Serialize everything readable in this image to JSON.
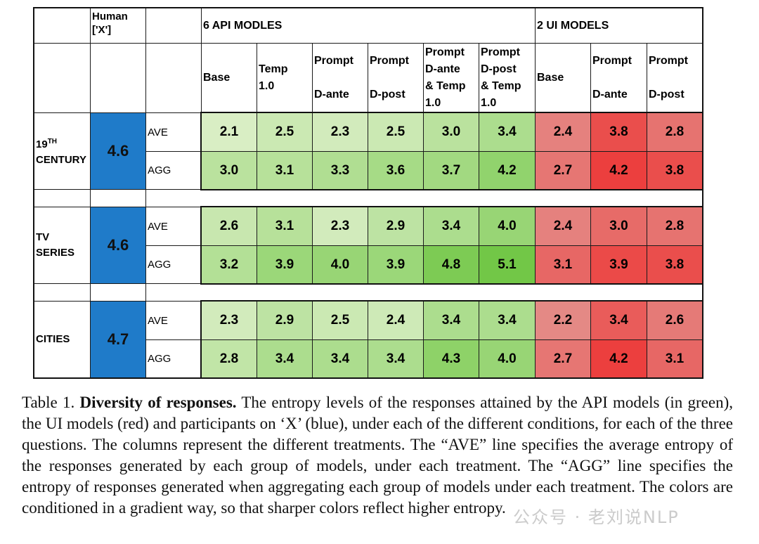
{
  "table": {
    "header": {
      "human": "Human\n['X']",
      "api_group": "6 API MODLES",
      "ui_group": "2 UI MODELS",
      "api_columns": [
        "Base",
        "Temp\n1.0",
        "Prompt\n\nD-ante",
        "Prompt\n\nD-post",
        "Prompt\nD-ante\n& Temp\n1.0",
        "Prompt\nD-post\n& Temp\n1.0"
      ],
      "ui_columns": [
        "Base",
        "Prompt\n\nD-ante",
        "Prompt\n\nD-post"
      ]
    },
    "groups": [
      {
        "name_main": "19",
        "name_sup": "TH",
        "name_rest": "CENTURY",
        "human_value": "4.6",
        "rows": [
          {
            "label": "AVE",
            "api": [
              "2.1",
              "2.5",
              "2.3",
              "2.5",
              "3.0",
              "3.4"
            ],
            "ui": [
              "2.4",
              "3.8",
              "2.8"
            ]
          },
          {
            "label": "AGG",
            "api": [
              "3.0",
              "3.1",
              "3.3",
              "3.6",
              "3.7",
              "4.2"
            ],
            "ui": [
              "2.7",
              "4.2",
              "3.8"
            ]
          }
        ]
      },
      {
        "name_main": "TV SERIES",
        "name_sup": "",
        "name_rest": "",
        "human_value": "4.6",
        "rows": [
          {
            "label": "AVE",
            "api": [
              "2.6",
              "3.1",
              "2.3",
              "2.9",
              "3.4",
              "4.0"
            ],
            "ui": [
              "2.4",
              "3.0",
              "2.8"
            ]
          },
          {
            "label": "AGG",
            "api": [
              "3.2",
              "3.9",
              "4.0",
              "3.9",
              "4.8",
              "5.1"
            ],
            "ui": [
              "3.1",
              "3.9",
              "3.8"
            ]
          }
        ]
      },
      {
        "name_main": "CITIES",
        "name_sup": "",
        "name_rest": "",
        "human_value": "4.7",
        "rows": [
          {
            "label": "AVE",
            "api": [
              "2.3",
              "2.9",
              "2.5",
              "2.4",
              "3.4",
              "3.4"
            ],
            "ui": [
              "2.2",
              "3.4",
              "2.6"
            ]
          },
          {
            "label": "AGG",
            "api": [
              "2.8",
              "3.4",
              "3.4",
              "3.4",
              "4.3",
              "4.0"
            ],
            "ui": [
              "2.7",
              "4.2",
              "3.1"
            ]
          }
        ]
      }
    ],
    "colors": {
      "api_low": "#dcefc8",
      "api_high": "#6fc643",
      "ui_low": "#e3908c",
      "ui_high": "#f01a1a",
      "human": "#1f7bc9"
    },
    "color_scale": {
      "min": 2.0,
      "max": 5.2
    }
  },
  "caption": {
    "prefix": "Table 1. ",
    "bold": "Diversity of responses.",
    "body": " The entropy levels of the responses attained by the API models (in green), the UI models (red) and participants on ‘X’ (blue), under each of the different conditions, for each of the three questions. The columns represent the different treatments. The “AVE” line specifies the average entropy of the responses generated by each group of models, under each treatment. The “AGG” line specifies the entropy of responses generated when aggregating each group of models under each treatment. The colors are conditioned in a gradient way, so that sharper colors reflect higher entropy."
  },
  "watermark": "公众号 · 老刘说NLP"
}
